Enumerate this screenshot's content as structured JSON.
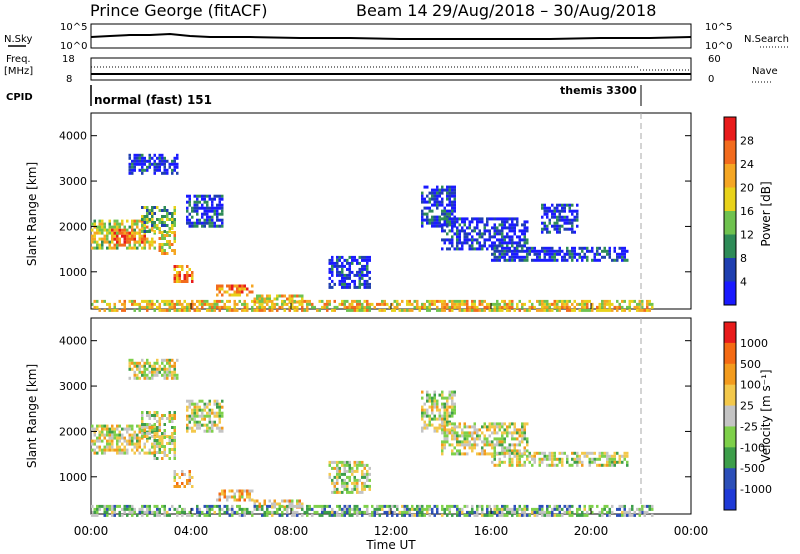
{
  "header": {
    "station": "Prince George (fitACF)",
    "beam": "Beam 14",
    "dates": "29/Aug/2018 – 30/Aug/2018"
  },
  "top_panels": {
    "nsky_label": "N.Sky",
    "nsearch_label": "N.Search",
    "freq_label_1": "Freq.",
    "freq_label_2": "[MHz]",
    "nave_label": "Nave",
    "cpid_label": "CPID",
    "noise_ticks": [
      "10^5",
      "10^0"
    ],
    "freq_ticks": [
      "18",
      "8"
    ],
    "nave_ticks": [
      "60",
      "0"
    ],
    "cpid_modes": [
      "normal (fast) 151",
      "themis 3300"
    ]
  },
  "power_panel": {
    "colorbar_label": "Power [dB]",
    "colorbar_ticks": [
      "28",
      "24",
      "20",
      "16",
      "12",
      "8",
      "4"
    ]
  },
  "velocity_panel": {
    "colorbar_label": "Velocity [m s⁻¹]",
    "colorbar_ticks": [
      "1000",
      "500",
      "100",
      "25",
      "-25",
      "-100",
      "-500",
      "-1000"
    ]
  },
  "colors": {
    "power": [
      "#1a1aff",
      "#1f3fb0",
      "#2e8b57",
      "#6fc24f",
      "#e8d21a",
      "#f5a623",
      "#f26b1d",
      "#e81b1b"
    ],
    "velocity": [
      "#1f3ad6",
      "#2c4fb8",
      "#3d9e4a",
      "#7ed04a",
      "#c4c4c4",
      "#f3c84b",
      "#f39b1d",
      "#f46a13",
      "#e81b1b"
    ]
  },
  "chart_data": [
    {
      "type": "heatmap",
      "title": "Power",
      "ylabel": "Slant Range [km]",
      "xlabel": "Time UT",
      "x_ticks": [
        "00:00",
        "04:00",
        "08:00",
        "12:00",
        "16:00",
        "20:00",
        "00:00"
      ],
      "y_ticks": [
        "1000",
        "2000",
        "3000",
        "4000"
      ],
      "xlim_hours": [
        0,
        24
      ],
      "ylim_km": [
        180,
        4500
      ],
      "colorbar": {
        "label": "Power [dB]",
        "range": [
          0,
          30
        ],
        "ticks": [
          4,
          8,
          12,
          16,
          20,
          24,
          28
        ]
      },
      "regions": [
        {
          "t": [
            0.0,
            2.6
          ],
          "r": [
            1500,
            2150
          ],
          "level": 0.55
        },
        {
          "t": [
            0.8,
            2.2
          ],
          "r": [
            1650,
            1950
          ],
          "level": 0.78
        },
        {
          "t": [
            2.0,
            3.4
          ],
          "r": [
            1900,
            2450
          ],
          "level": 0.35
        },
        {
          "t": [
            2.7,
            3.4
          ],
          "r": [
            1400,
            1900
          ],
          "level": 0.6
        },
        {
          "t": [
            3.3,
            4.1
          ],
          "r": [
            780,
            1150
          ],
          "level": 0.75
        },
        {
          "t": [
            3.8,
            5.3
          ],
          "r": [
            2000,
            2700
          ],
          "level": 0.15
        },
        {
          "t": [
            5.0,
            6.5
          ],
          "r": [
            500,
            720
          ],
          "level": 0.72
        },
        {
          "t": [
            6.5,
            8.5
          ],
          "r": [
            330,
            500
          ],
          "level": 0.6
        },
        {
          "t": [
            0.0,
            22.5
          ],
          "r": [
            180,
            380
          ],
          "level": 0.6
        },
        {
          "t": [
            9.5,
            11.2
          ],
          "r": [
            650,
            1350
          ],
          "level": 0.12
        },
        {
          "t": [
            13.2,
            14.5
          ],
          "r": [
            2000,
            2900
          ],
          "level": 0.12
        },
        {
          "t": [
            14.0,
            17.5
          ],
          "r": [
            1500,
            2200
          ],
          "level": 0.12
        },
        {
          "t": [
            16.0,
            21.5
          ],
          "r": [
            1250,
            1550
          ],
          "level": 0.12
        },
        {
          "t": [
            18.0,
            19.5
          ],
          "r": [
            1900,
            2500
          ],
          "level": 0.12
        },
        {
          "t": [
            1.5,
            3.5
          ],
          "r": [
            3200,
            3600
          ],
          "level": 0.1
        }
      ]
    },
    {
      "type": "heatmap",
      "title": "Velocity",
      "ylabel": "Slant Range [km]",
      "xlabel": "Time UT",
      "x_ticks": [
        "00:00",
        "04:00",
        "08:00",
        "12:00",
        "16:00",
        "20:00",
        "00:00"
      ],
      "y_ticks": [
        "1000",
        "2000",
        "3000",
        "4000"
      ],
      "xlim_hours": [
        0,
        24
      ],
      "ylim_km": [
        180,
        4500
      ],
      "colorbar": {
        "label": "Velocity [m s⁻¹]",
        "range": [
          -1000,
          1000
        ],
        "ticks": [
          1000,
          500,
          100,
          25,
          -25,
          -100,
          -500,
          -1000
        ]
      },
      "regions": [
        {
          "t": [
            0.0,
            2.6
          ],
          "r": [
            1500,
            2150
          ],
          "level": 0.5
        },
        {
          "t": [
            2.0,
            3.4
          ],
          "r": [
            1900,
            2450
          ],
          "level": 0.5
        },
        {
          "t": [
            2.5,
            3.4
          ],
          "r": [
            1400,
            1900
          ],
          "level": 0.5
        },
        {
          "t": [
            3.3,
            4.1
          ],
          "r": [
            780,
            1150
          ],
          "level": 0.65
        },
        {
          "t": [
            3.8,
            5.3
          ],
          "r": [
            2000,
            2700
          ],
          "level": 0.5
        },
        {
          "t": [
            5.0,
            6.5
          ],
          "r": [
            500,
            720
          ],
          "level": 0.65
        },
        {
          "t": [
            6.5,
            8.5
          ],
          "r": [
            330,
            500
          ],
          "level": 0.65
        },
        {
          "t": [
            0.0,
            22.5
          ],
          "r": [
            180,
            380
          ],
          "level": 0.35
        },
        {
          "t": [
            9.5,
            11.2
          ],
          "r": [
            650,
            1350
          ],
          "level": 0.5
        },
        {
          "t": [
            13.2,
            14.5
          ],
          "r": [
            2000,
            2900
          ],
          "level": 0.5
        },
        {
          "t": [
            14.0,
            17.5
          ],
          "r": [
            1500,
            2200
          ],
          "level": 0.5
        },
        {
          "t": [
            16.0,
            21.5
          ],
          "r": [
            1250,
            1550
          ],
          "level": 0.5
        },
        {
          "t": [
            1.5,
            3.5
          ],
          "r": [
            3200,
            3600
          ],
          "level": 0.5
        }
      ]
    }
  ]
}
